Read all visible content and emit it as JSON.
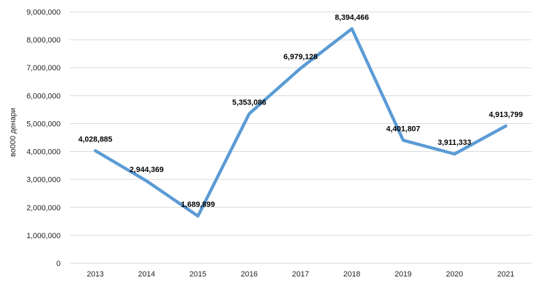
{
  "chart_data": {
    "type": "line",
    "title": "",
    "xlabel": "",
    "ylabel": "во000 денари",
    "categories": [
      "2013",
      "2014",
      "2015",
      "2016",
      "2017",
      "2018",
      "2019",
      "2020",
      "2021"
    ],
    "series": [
      {
        "values": [
          4028885,
          2944369,
          1689899,
          5353086,
          6979128,
          8394466,
          4401807,
          3911333,
          4913799
        ],
        "labels": [
          "4,028,885",
          "2,944,369",
          "1,689,899",
          "5,353,086",
          "6,979,128",
          "8,394,466",
          "4,401,807",
          "3,911,333",
          "4,913,799"
        ],
        "color": "#5b9bd5"
      }
    ],
    "ylim": [
      0,
      9000000
    ],
    "yticks": [
      0,
      1000000,
      2000000,
      3000000,
      4000000,
      5000000,
      6000000,
      7000000,
      8000000,
      9000000
    ],
    "ytick_labels": [
      "0",
      "1,000,000",
      "2,000,000",
      "3,000,000",
      "4,000,000",
      "5,000,000",
      "6,000,000",
      "7,000,000",
      "8,000,000",
      "9,000,000"
    ],
    "grid": true,
    "legend": "none"
  }
}
